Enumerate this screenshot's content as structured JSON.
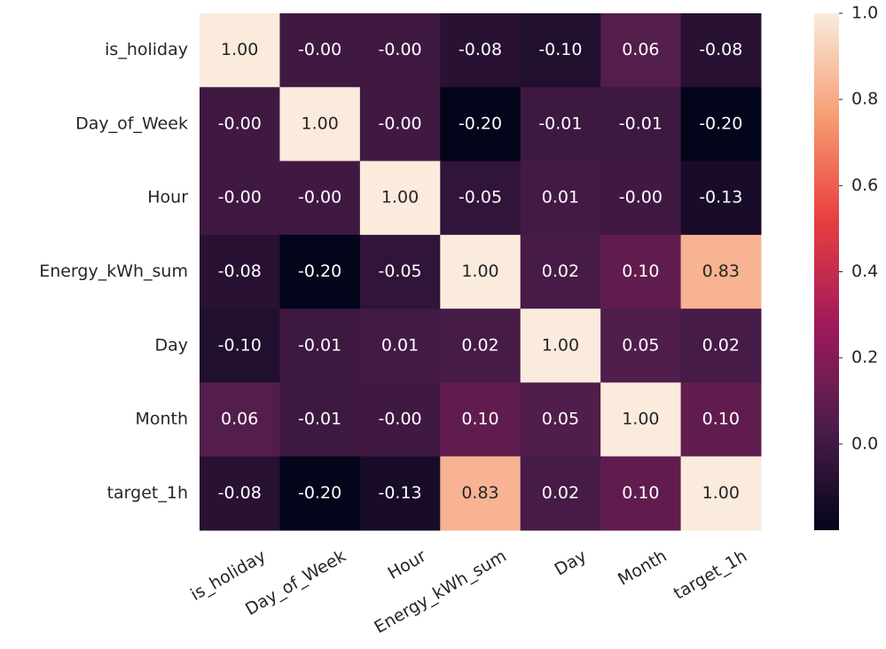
{
  "chart_data": {
    "type": "heatmap",
    "x_categories": [
      "is_holiday",
      "Day_of_Week",
      "Hour",
      "Energy_kWh_sum",
      "Day",
      "Month",
      "target_1h"
    ],
    "y_categories": [
      "is_holiday",
      "Day_of_Week",
      "Hour",
      "Energy_kWh_sum",
      "Day",
      "Month",
      "target_1h"
    ],
    "values": [
      [
        1,
        0,
        0,
        -0.08,
        -0.1,
        0.06,
        -0.08
      ],
      [
        0,
        1,
        0,
        -0.2,
        -0.01,
        -0.01,
        -0.2
      ],
      [
        0,
        0,
        1,
        -0.05,
        0.01,
        0,
        -0.13
      ],
      [
        -0.08,
        -0.2,
        -0.05,
        1,
        0.02,
        0.1,
        0.83
      ],
      [
        -0.1,
        -0.01,
        0.01,
        0.02,
        1,
        0.05,
        0.02
      ],
      [
        0.06,
        -0.01,
        0,
        0.1,
        0.05,
        1,
        0.1
      ],
      [
        -0.08,
        -0.2,
        -0.13,
        0.83,
        0.02,
        0.1,
        1
      ]
    ],
    "value_labels": [
      [
        "1.00",
        "-0.00",
        "-0.00",
        "-0.08",
        "-0.10",
        "0.06",
        "-0.08"
      ],
      [
        "-0.00",
        "1.00",
        "-0.00",
        "-0.20",
        "-0.01",
        "-0.01",
        "-0.20"
      ],
      [
        "-0.00",
        "-0.00",
        "1.00",
        "-0.05",
        "0.01",
        "-0.00",
        "-0.13"
      ],
      [
        "-0.08",
        "-0.20",
        "-0.05",
        "1.00",
        "0.02",
        "0.10",
        "0.83"
      ],
      [
        "-0.10",
        "-0.01",
        "0.01",
        "0.02",
        "1.00",
        "0.05",
        "0.02"
      ],
      [
        "0.06",
        "-0.01",
        "-0.00",
        "0.10",
        "0.05",
        "1.00",
        "0.10"
      ],
      [
        "-0.08",
        "-0.20",
        "-0.13",
        "0.83",
        "0.02",
        "0.10",
        "1.00"
      ]
    ],
    "colormap": "rocket",
    "zlim": [
      -0.2,
      1
    ],
    "zticks": [
      {
        "value": 0,
        "label": "0.0"
      },
      0.2,
      0.4,
      0.6,
      0.8,
      {
        "value": 1,
        "label": "1.0"
      }
    ]
  }
}
